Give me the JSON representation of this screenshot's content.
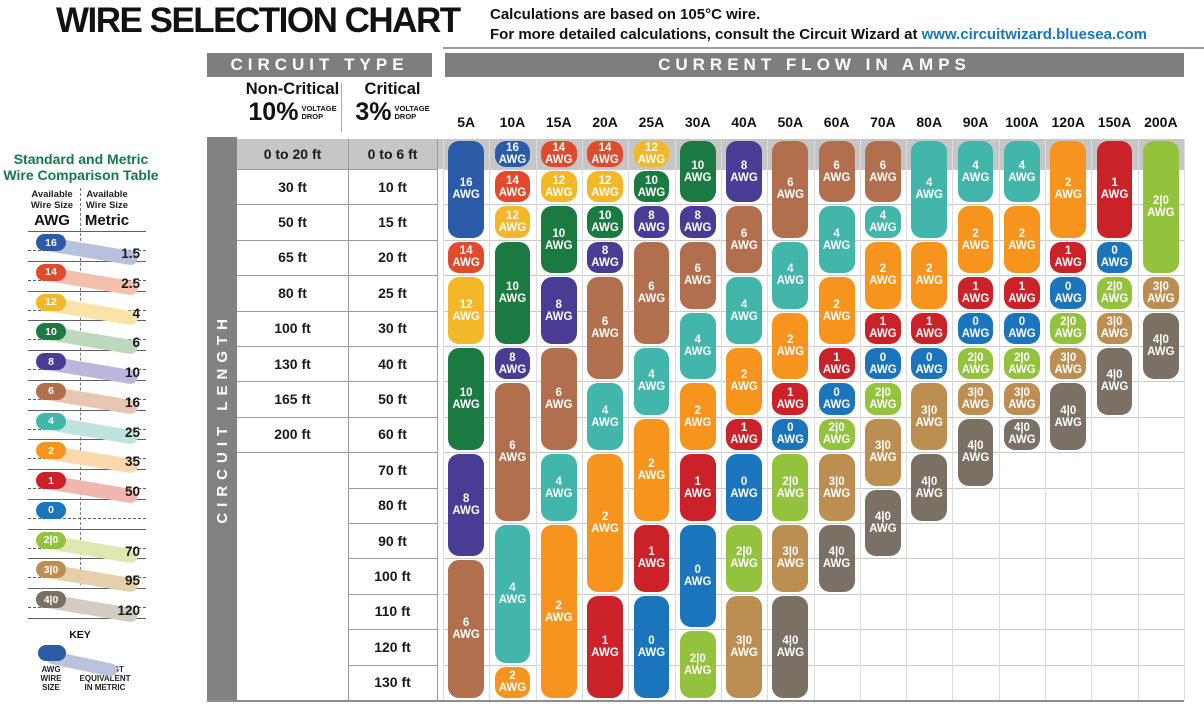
{
  "header": {
    "title": "WIRE SELECTION CHART",
    "note_line1": "Calculations are based on 105°C wire.",
    "note_line2_prefix": "For more detailed calculations, consult the Circuit Wizard at ",
    "note_link": "www.circuitwizard.bluesea.com"
  },
  "table": {
    "circuit_type_header": "CIRCUIT TYPE",
    "current_flow_header": "CURRENT FLOW IN AMPS",
    "circuit_length_label": "CIRCUIT LENGTH",
    "non_critical_title": "Non-Critical",
    "non_critical_pct": "10%",
    "critical_title": "Critical",
    "critical_pct": "3%",
    "voltage_drop": "VOLTAGE\nDROP"
  },
  "colors": {
    "16": "#2b5ba6",
    "14": "#e04b2e",
    "12": "#f2b827",
    "10": "#1b7a41",
    "8": "#493c95",
    "6": "#b26f4d",
    "4": "#42b6aa",
    "2": "#f7941e",
    "1": "#cb2128",
    "0": "#1b75bc",
    "2|0": "#93c23c",
    "3|0": "#bd8e52",
    "4|0": "#7a7063"
  },
  "ribbon_colors": {
    "16": "#b6c1dd",
    "14": "#f3c0ae",
    "12": "#f9e3a9",
    "10": "#bdd8bc",
    "8": "#bcb6dc",
    "6": "#e9c6b2",
    "4": "#bfe3dd",
    "2": "#fbd9ac",
    "1": "#f0b6b0",
    "0": "#b6c1dd",
    "2|0": "#dce9b0",
    "3|0": "#e6d0ac",
    "4|0": "#d2ccc2",
    "key": "#b9c3de"
  },
  "comparison_table": {
    "title": "Standard and Metric\nWire Comparison Table",
    "col1_header": "Available\nWire Size",
    "col1_unit": "AWG",
    "col2_header": "Available\nWire Size",
    "col2_unit": "Metric",
    "rows": [
      {
        "awg": "16",
        "metric": "1.5"
      },
      {
        "awg": "14",
        "metric": "2.5"
      },
      {
        "awg": "12",
        "metric": "4"
      },
      {
        "awg": "10",
        "metric": "6"
      },
      {
        "awg": "8",
        "metric": "10"
      },
      {
        "awg": "6",
        "metric": "16"
      },
      {
        "awg": "4",
        "metric": "25"
      },
      {
        "awg": "2",
        "metric": "35"
      },
      {
        "awg": "1",
        "metric": "50"
      },
      {
        "awg": "0",
        "metric": null
      },
      {
        "awg": "2|0",
        "metric": "70"
      },
      {
        "awg": "3|0",
        "metric": "95"
      },
      {
        "awg": "4|0",
        "metric": "120"
      }
    ],
    "key": {
      "label": "KEY",
      "left_label": "AWG\nWIRE\nSIZE",
      "right_label": "CLOSEST\nEQUIVALENT\nIN METRIC"
    }
  },
  "chart_data": {
    "type": "table",
    "title": "WIRE SELECTION CHART",
    "awg_suffix": "AWG",
    "amp_columns": [
      "5A",
      "10A",
      "15A",
      "20A",
      "25A",
      "30A",
      "40A",
      "50A",
      "60A",
      "70A",
      "80A",
      "90A",
      "100A",
      "120A",
      "150A",
      "200A"
    ],
    "non_critical_lengths": [
      "0 to 20 ft",
      "30 ft",
      "50 ft",
      "65 ft",
      "80 ft",
      "100 ft",
      "130 ft",
      "165 ft",
      "200 ft"
    ],
    "critical_lengths": [
      "0 to 6 ft",
      "10 ft",
      "15 ft",
      "20 ft",
      "25 ft",
      "30 ft",
      "40 ft",
      "50 ft",
      "60 ft",
      "70 ft",
      "80 ft",
      "90 ft",
      "100 ft",
      "110 ft",
      "120 ft",
      "130 ft"
    ],
    "columns": [
      {
        "amp": "5A",
        "segments": [
          [
            "16",
            0,
            2
          ],
          [
            "14",
            3,
            3
          ],
          [
            "12",
            4,
            5
          ],
          [
            "10",
            6,
            8
          ],
          [
            "8",
            9,
            11
          ],
          [
            "6",
            12,
            15
          ]
        ]
      },
      {
        "amp": "10A",
        "segments": [
          [
            "16",
            0,
            0
          ],
          [
            "14",
            1,
            1
          ],
          [
            "12",
            2,
            2
          ],
          [
            "10",
            3,
            5
          ],
          [
            "8",
            6,
            6
          ],
          [
            "6",
            7,
            10
          ],
          [
            "4",
            11,
            14
          ],
          [
            "2",
            15,
            15
          ]
        ]
      },
      {
        "amp": "15A",
        "segments": [
          [
            "14",
            0,
            0
          ],
          [
            "12",
            1,
            1
          ],
          [
            "10",
            2,
            3
          ],
          [
            "8",
            4,
            5
          ],
          [
            "6",
            6,
            8
          ],
          [
            "4",
            9,
            10
          ],
          [
            "2",
            11,
            15
          ]
        ]
      },
      {
        "amp": "20A",
        "segments": [
          [
            "14",
            0,
            0
          ],
          [
            "12",
            1,
            1
          ],
          [
            "10",
            2,
            2
          ],
          [
            "8",
            3,
            3
          ],
          [
            "6",
            4,
            6
          ],
          [
            "4",
            7,
            8
          ],
          [
            "2",
            9,
            12
          ],
          [
            "1",
            13,
            15
          ]
        ]
      },
      {
        "amp": "25A",
        "segments": [
          [
            "12",
            0,
            0
          ],
          [
            "10",
            1,
            1
          ],
          [
            "8",
            2,
            2
          ],
          [
            "6",
            3,
            5
          ],
          [
            "4",
            6,
            7
          ],
          [
            "2",
            8,
            10
          ],
          [
            "1",
            11,
            12
          ],
          [
            "0",
            13,
            15
          ]
        ]
      },
      {
        "amp": "30A",
        "segments": [
          [
            "10",
            0,
            1
          ],
          [
            "8",
            2,
            2
          ],
          [
            "6",
            3,
            4
          ],
          [
            "4",
            5,
            6
          ],
          [
            "2",
            7,
            8
          ],
          [
            "1",
            9,
            10
          ],
          [
            "0",
            11,
            13
          ],
          [
            "2|0",
            14,
            15
          ]
        ]
      },
      {
        "amp": "40A",
        "segments": [
          [
            "8",
            0,
            1
          ],
          [
            "6",
            2,
            3
          ],
          [
            "4",
            4,
            5
          ],
          [
            "2",
            6,
            7
          ],
          [
            "1",
            8,
            8
          ],
          [
            "0",
            9,
            10
          ],
          [
            "2|0",
            11,
            12
          ],
          [
            "3|0",
            13,
            15
          ]
        ]
      },
      {
        "amp": "50A",
        "segments": [
          [
            "6",
            0,
            2
          ],
          [
            "4",
            3,
            4
          ],
          [
            "2",
            5,
            6
          ],
          [
            "1",
            7,
            7
          ],
          [
            "0",
            8,
            8
          ],
          [
            "2|0",
            9,
            10
          ],
          [
            "3|0",
            11,
            12
          ],
          [
            "4|0",
            13,
            15
          ]
        ]
      },
      {
        "amp": "60A",
        "segments": [
          [
            "6",
            0,
            1
          ],
          [
            "4",
            2,
            3
          ],
          [
            "2",
            4,
            5
          ],
          [
            "1",
            6,
            6
          ],
          [
            "0",
            7,
            7
          ],
          [
            "2|0",
            8,
            8
          ],
          [
            "3|0",
            9,
            10
          ],
          [
            "4|0",
            11,
            12
          ]
        ]
      },
      {
        "amp": "70A",
        "segments": [
          [
            "6",
            0,
            1
          ],
          [
            "4",
            2,
            2
          ],
          [
            "2",
            3,
            4
          ],
          [
            "1",
            5,
            5
          ],
          [
            "0",
            6,
            6
          ],
          [
            "2|0",
            7,
            7
          ],
          [
            "3|0",
            8,
            9
          ],
          [
            "4|0",
            10,
            11
          ]
        ]
      },
      {
        "amp": "80A",
        "segments": [
          [
            "4",
            0,
            2
          ],
          [
            "2",
            3,
            4
          ],
          [
            "1",
            5,
            5
          ],
          [
            "0",
            6,
            6
          ],
          [
            "3|0",
            7,
            8
          ],
          [
            "4|0",
            9,
            10
          ]
        ]
      },
      {
        "amp": "90A",
        "segments": [
          [
            "4",
            0,
            1
          ],
          [
            "2",
            2,
            3
          ],
          [
            "1",
            4,
            4
          ],
          [
            "0",
            5,
            5
          ],
          [
            "2|0",
            6,
            6
          ],
          [
            "3|0",
            7,
            7
          ],
          [
            "4|0",
            8,
            9
          ]
        ]
      },
      {
        "amp": "100A",
        "segments": [
          [
            "4",
            0,
            1
          ],
          [
            "2",
            2,
            3
          ],
          [
            "1",
            4,
            4
          ],
          [
            "0",
            5,
            5
          ],
          [
            "2|0",
            6,
            6
          ],
          [
            "3|0",
            7,
            7
          ],
          [
            "4|0",
            8,
            8
          ]
        ]
      },
      {
        "amp": "120A",
        "segments": [
          [
            "2",
            0,
            2
          ],
          [
            "1",
            3,
            3
          ],
          [
            "0",
            4,
            4
          ],
          [
            "2|0",
            5,
            5
          ],
          [
            "3|0",
            6,
            6
          ],
          [
            "4|0",
            7,
            8
          ]
        ]
      },
      {
        "amp": "150A",
        "segments": [
          [
            "1",
            0,
            2
          ],
          [
            "0",
            3,
            3
          ],
          [
            "2|0",
            4,
            4
          ],
          [
            "3|0",
            5,
            5
          ],
          [
            "4|0",
            6,
            7
          ]
        ]
      },
      {
        "amp": "200A",
        "segments": [
          [
            "2|0",
            0,
            3
          ],
          [
            "3|0",
            4,
            4
          ],
          [
            "4|0",
            5,
            6
          ]
        ]
      }
    ]
  }
}
